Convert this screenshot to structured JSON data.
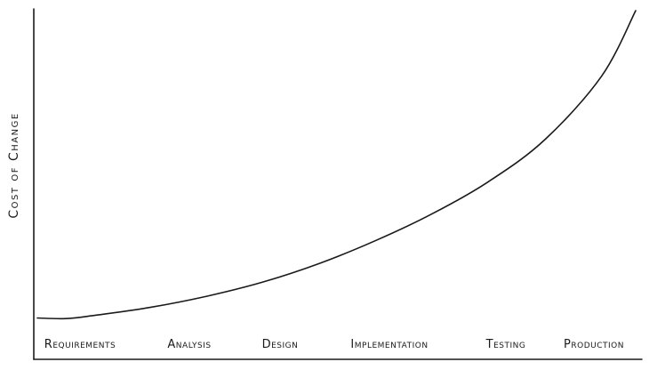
{
  "chart_data": {
    "type": "line",
    "title": "",
    "xlabel": "",
    "ylabel": "Cost of Change",
    "categories": [
      "Requirements",
      "Analysis",
      "Design",
      "Implementation",
      "Testing",
      "Production"
    ],
    "x": [
      0,
      0.25,
      0.5,
      1,
      1.5,
      2,
      2.5,
      3,
      3.5,
      4,
      4.5,
      5,
      5.3
    ],
    "series": [
      {
        "values": [
          1,
          0.8,
          1.8,
          4.4,
          8,
          12.6,
          18.6,
          26,
          34.6,
          45,
          58.6,
          79,
          100
        ]
      }
    ],
    "ylim": [
      0,
      100
    ],
    "grid": false,
    "legend": "none",
    "colors": {
      "line": "#1a1a1a",
      "axis": "#1a1a1a"
    }
  }
}
